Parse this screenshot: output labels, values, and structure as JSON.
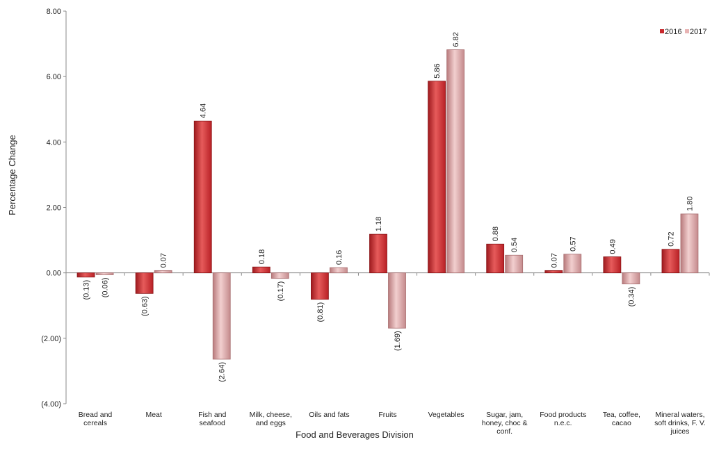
{
  "colors": {
    "series_2016": "#c8282c",
    "series_2016_light": "#e86a6a",
    "series_2017": "#d4999b",
    "series_2017_light": "#f0c8c8",
    "axis": "#888888"
  },
  "chart_data": {
    "type": "bar",
    "title": "",
    "xlabel": "Food and Beverages Division",
    "ylabel": "Percentage Change",
    "ylim": [
      -4,
      8
    ],
    "yticks": [
      -4,
      -2,
      0,
      2,
      4,
      6,
      8
    ],
    "ytick_labels": [
      "(4.00)",
      "(2.00)",
      "0.00",
      "2.00",
      "4.00",
      "6.00",
      "8.00"
    ],
    "grid": false,
    "legend_position": "top-right",
    "categories": [
      [
        "Bread and",
        "cereals"
      ],
      [
        "Meat"
      ],
      [
        "Fish and",
        "seafood"
      ],
      [
        "Milk, cheese,",
        "and eggs"
      ],
      [
        "Oils and fats"
      ],
      [
        "Fruits"
      ],
      [
        "Vegetables"
      ],
      [
        "Sugar, jam,",
        "honey, choc &",
        "conf."
      ],
      [
        "Food products",
        "n.e.c."
      ],
      [
        "Tea, coffee,",
        "cacao"
      ],
      [
        "Mineral waters,",
        "soft drinks, F. V.",
        "juices"
      ]
    ],
    "series": [
      {
        "name": "2016",
        "values": [
          -0.13,
          -0.63,
          4.64,
          0.18,
          -0.81,
          1.18,
          5.86,
          0.88,
          0.07,
          0.49,
          0.72
        ],
        "labels": [
          "(0.13)",
          "(0.63)",
          "4.64",
          "0.18",
          "(0.81)",
          "1.18",
          "5.86",
          "0.88",
          "0.07",
          "0.49",
          "0.72"
        ]
      },
      {
        "name": "2017",
        "values": [
          -0.06,
          0.07,
          -2.64,
          -0.17,
          0.16,
          -1.69,
          6.82,
          0.54,
          0.57,
          -0.34,
          1.8
        ],
        "labels": [
          "(0.06)",
          "0.07",
          "(2.64)",
          "(0.17)",
          "0.16",
          "(1.69)",
          "6.82",
          "0.54",
          "0.57",
          "(0.34)",
          "1.80"
        ]
      }
    ]
  }
}
